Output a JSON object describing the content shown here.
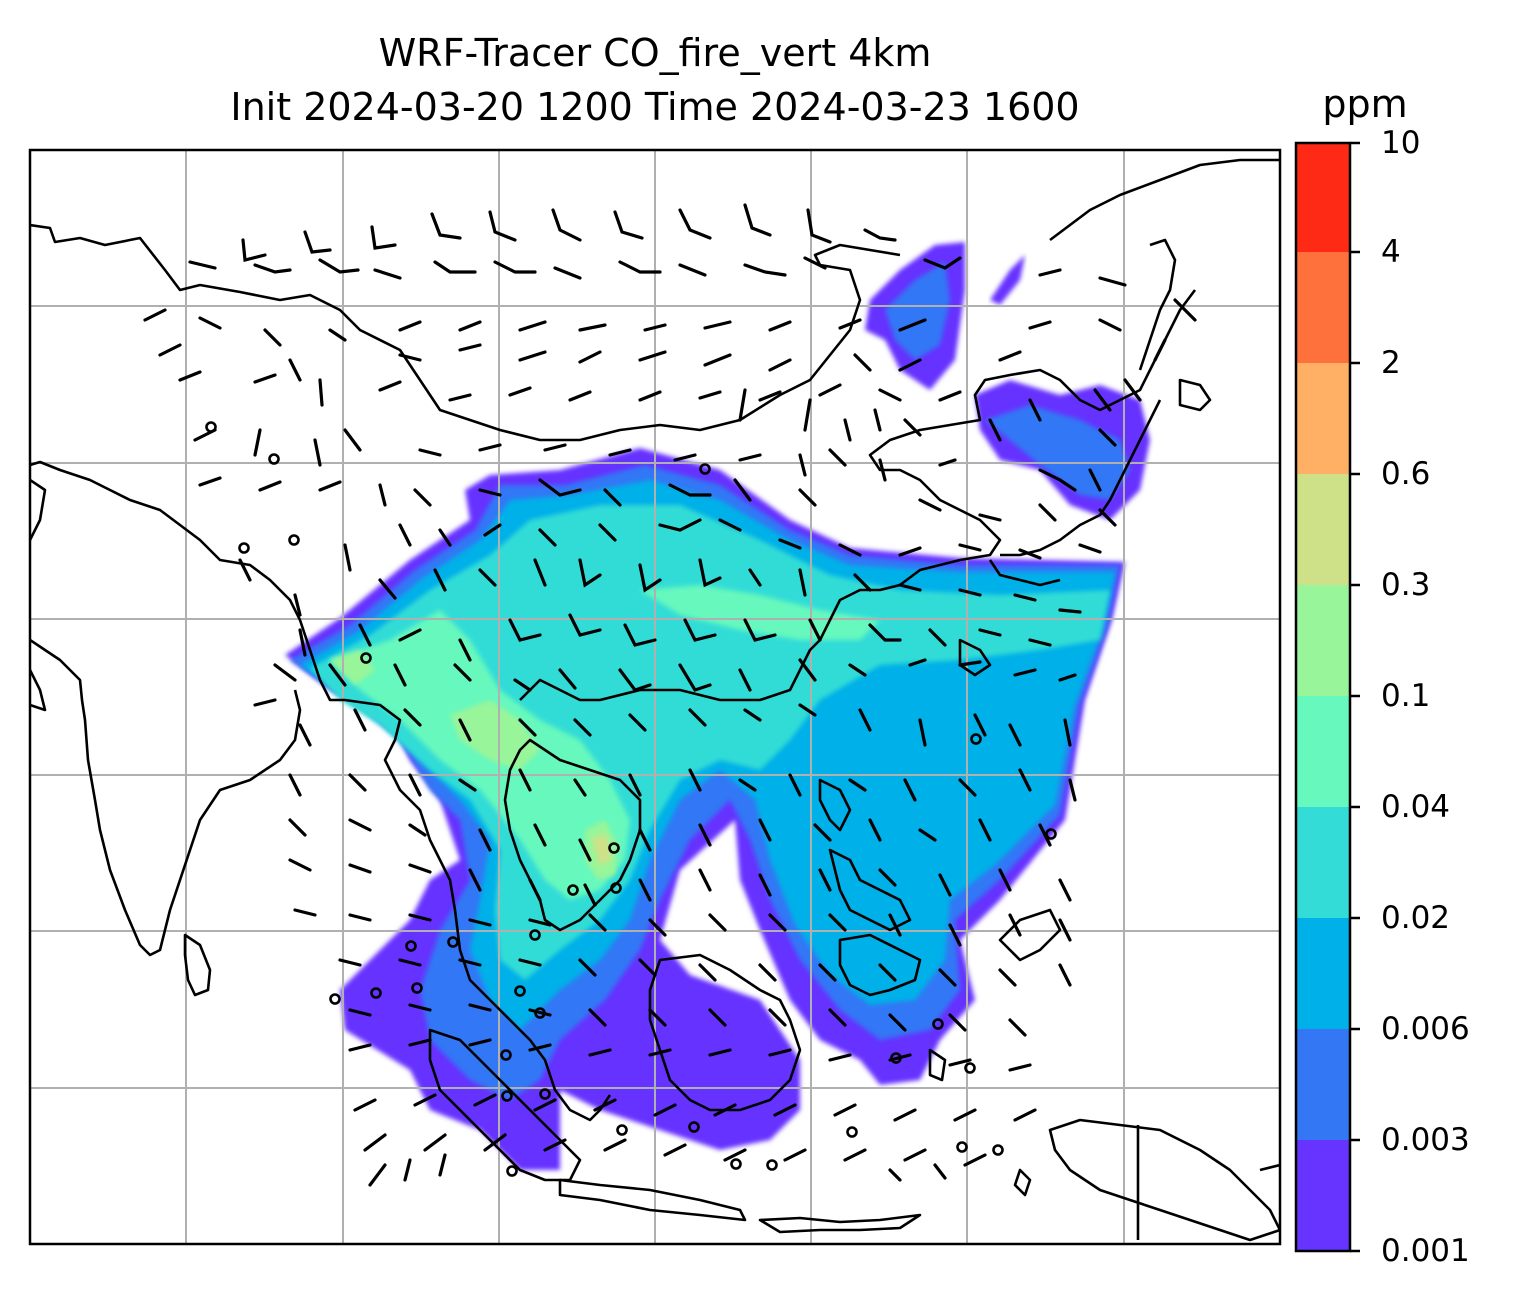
{
  "title": {
    "line1": "WRF-Tracer CO_fire_vert 4km",
    "line2": "Init 2024-03-20 1200 Time 2024-03-23 1600"
  },
  "colorbar": {
    "units": "ppm",
    "ticks": [
      "10",
      "4",
      "2",
      "0.6",
      "0.3",
      "0.1",
      "0.04",
      "0.02",
      "0.006",
      "0.003",
      "0.001"
    ],
    "colors_bottom_to_top": [
      "#6633ff",
      "#3377f5",
      "#00b0e8",
      "#33dcd6",
      "#66f8bd",
      "#99f599",
      "#cfe188",
      "#ffb064",
      "#ff713c",
      "#ff2a16"
    ]
  },
  "map": {
    "field": "CO_fire_vert",
    "gridlines": true,
    "wind_barbs": true
  }
}
